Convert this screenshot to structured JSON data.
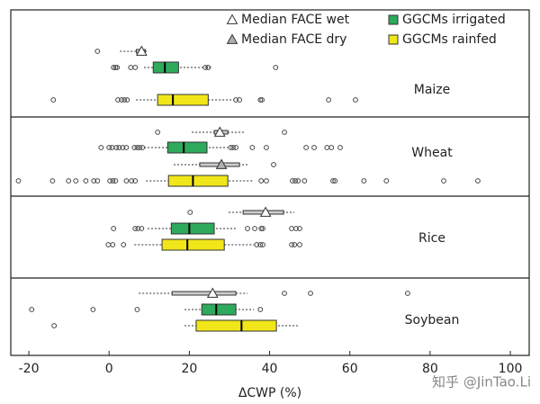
{
  "chart_data": {
    "type": "box",
    "xlabel": "ΔCWP (%)",
    "xlim": [
      -24.5,
      104.7
    ],
    "xticks": [
      -20,
      0,
      20,
      40,
      60,
      80,
      100
    ],
    "watermark": "知乎 @JinTao.Li",
    "series": [
      {
        "name": "Median FACE wet",
        "color": "#ffffff",
        "marker": "triangle"
      },
      {
        "name": "Median FACE dry",
        "color": "#b0b0b0",
        "marker": "triangle"
      },
      {
        "name": "GGCMs irrigated",
        "color": "#2eaa5c",
        "marker": "square"
      },
      {
        "name": "GGCMs rainfed",
        "color": "#f0e619",
        "marker": "square"
      }
    ],
    "panels": [
      {
        "name": "Maize",
        "boxes": [
          {
            "series": 0,
            "whislo": 2.7,
            "q1": 6.8,
            "med": 8.1,
            "q3": 9.0,
            "whishi": 9.9,
            "fliers": [
              -2.9
            ]
          },
          {
            "series": 2,
            "whislo": 8.7,
            "q1": 11.0,
            "med": 13.9,
            "q3": 17.3,
            "whishi": 25.3,
            "fliers": [
              1.1,
              1.6,
              2.0,
              5.4,
              6.5,
              24.0,
              24.7,
              41.5
            ]
          },
          {
            "series": 3,
            "whislo": 6.7,
            "q1": 12.1,
            "med": 15.9,
            "q3": 24.7,
            "whishi": 31.2,
            "fliers": [
              -13.9,
              2.2,
              3.1,
              3.8,
              4.5,
              31.6,
              32.5,
              37.7,
              38.1,
              54.7,
              61.4
            ]
          }
        ]
      },
      {
        "name": "Wheat",
        "boxes": [
          {
            "series": 0,
            "whislo": 20.6,
            "q1": 26.2,
            "med": 27.6,
            "q3": 29.6,
            "whishi": 33.9,
            "fliers": [
              12.1,
              43.7
            ]
          },
          {
            "series": 2,
            "whislo": 8.7,
            "q1": 14.6,
            "med": 18.6,
            "q3": 24.4,
            "whishi": 29.6,
            "fliers": [
              -2.0,
              0,
              0.7,
              1.8,
              2.5,
              3.4,
              4.3,
              6.3,
              7.0,
              7.6,
              8.3,
              30.3,
              30.9,
              31.6,
              35.7,
              39.2,
              49.1,
              51.1,
              54.3,
              55.4,
              57.6
            ]
          },
          {
            "series": 1,
            "whislo": 16.1,
            "q1": 22.6,
            "med": 28.0,
            "q3": 32.5,
            "whishi": 34.8,
            "fliers": [
              41.0
            ]
          },
          {
            "series": 3,
            "whislo": 9.2,
            "q1": 14.8,
            "med": 20.9,
            "q3": 29.6,
            "whishi": 36.1,
            "fliers": [
              -22.6,
              -14.1,
              -10.1,
              -8.3,
              -5.8,
              -3.8,
              -2.9,
              0.2,
              0.9,
              1.6,
              4.3,
              5.6,
              6.5,
              37.9,
              39.2,
              45.7,
              46.4,
              47.1,
              48.7,
              55.8,
              56.3,
              63.5,
              69.1,
              83.4,
              91.9
            ]
          }
        ]
      },
      {
        "name": "Rice",
        "boxes": [
          {
            "series": 0,
            "whislo": 29.8,
            "q1": 33.4,
            "med": 39.0,
            "q3": 43.5,
            "whishi": 46.2,
            "fliers": [
              20.2
            ]
          },
          {
            "series": 2,
            "whislo": 9.6,
            "q1": 15.5,
            "med": 20.0,
            "q3": 26.2,
            "whishi": 31.6,
            "fliers": [
              1.1,
              6.5,
              7.2,
              8.1,
              34.5,
              36.3,
              37.9,
              38.3,
              45.5,
              46.6,
              47.5
            ]
          },
          {
            "series": 3,
            "whislo": 6.3,
            "q1": 13.2,
            "med": 19.5,
            "q3": 28.7,
            "whishi": 36.1,
            "fliers": [
              -0.2,
              0.9,
              3.6,
              36.8,
              37.7,
              38.3,
              45.5,
              46.2,
              47.5
            ]
          }
        ]
      },
      {
        "name": "Soybean",
        "boxes": [
          {
            "series": 0,
            "whislo": 7.4,
            "q1": 15.7,
            "med": 25.8,
            "q3": 31.6,
            "whishi": 34.5,
            "fliers": [
              43.7,
              50.2,
              74.4
            ]
          },
          {
            "series": 2,
            "whislo": 18.8,
            "q1": 23.1,
            "med": 26.7,
            "q3": 31.6,
            "whishi": 36.1,
            "fliers": [
              -19.3,
              -4.0,
              7.0,
              37.7
            ]
          },
          {
            "series": 3,
            "whislo": 18.8,
            "q1": 21.7,
            "med": 33.0,
            "q3": 41.7,
            "whishi": 47.3,
            "fliers": [
              -13.7
            ]
          }
        ]
      }
    ]
  }
}
